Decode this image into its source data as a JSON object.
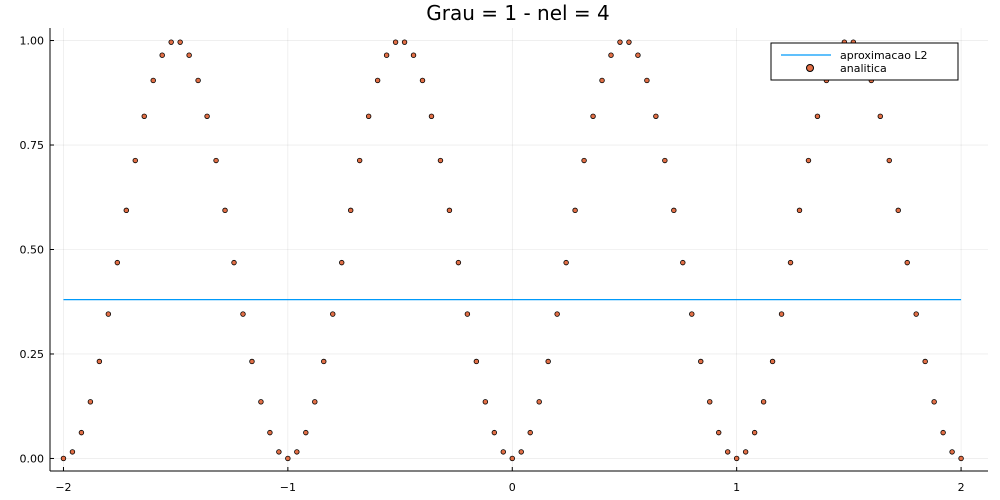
{
  "chart_data": {
    "type": "scatter",
    "title": "Grau = 1 - nel = 4",
    "xlabel": "",
    "ylabel": "",
    "xlim": [
      -2.06,
      2.12
    ],
    "ylim": [
      -0.03,
      1.03
    ],
    "x_ticks": [
      -2,
      -1,
      0,
      1,
      2
    ],
    "x_tick_labels": [
      "−2",
      "−1",
      "0",
      "1",
      "2"
    ],
    "y_ticks": [
      0,
      0.25,
      0.5,
      0.75,
      1
    ],
    "y_tick_labels": [
      "0.00",
      "0.25",
      "0.50",
      "0.75",
      "1.00"
    ],
    "grid": true,
    "legend_position": "top-right",
    "series": [
      {
        "name": "aproximacao L2",
        "kind": "line",
        "color": "#009AFA",
        "x": [
          -2,
          2
        ],
        "y": [
          0.38,
          0.38
        ]
      },
      {
        "name": "analitica",
        "kind": "scatter",
        "color": "#E26F46",
        "function": "sin(pi*x)^2",
        "x_start": -2,
        "x_end": 2,
        "n_points": 101
      }
    ]
  }
}
